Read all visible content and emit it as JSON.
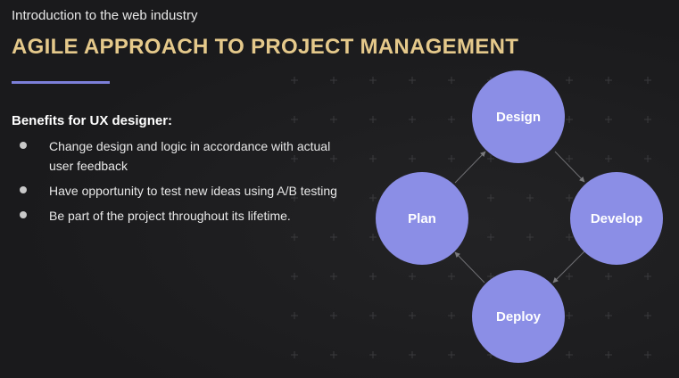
{
  "slide": {
    "kicker": "Introduction to the web industry",
    "title": "AGILE APPROACH TO PROJECT MANAGEMENT",
    "benefits_heading": "Benefits for UX designer:",
    "bullets": [
      "Change design and logic in accordance with actual user feedback",
      "Have opportunity to test new ideas using A/B testing",
      "Be part of the project throughout its lifetime."
    ]
  },
  "diagram": {
    "nodes": [
      {
        "id": "design",
        "label": "Design"
      },
      {
        "id": "develop",
        "label": "Develop"
      },
      {
        "id": "deploy",
        "label": "Deploy"
      },
      {
        "id": "plan",
        "label": "Plan"
      }
    ],
    "edges": [
      {
        "from": "design",
        "to": "develop"
      },
      {
        "from": "develop",
        "to": "deploy"
      },
      {
        "from": "deploy",
        "to": "plan"
      },
      {
        "from": "plan",
        "to": "design"
      }
    ]
  },
  "colors": {
    "accent_title": "#e5c98b",
    "node_fill": "#8b8ee6",
    "accent_line": "#7c7fd9"
  }
}
